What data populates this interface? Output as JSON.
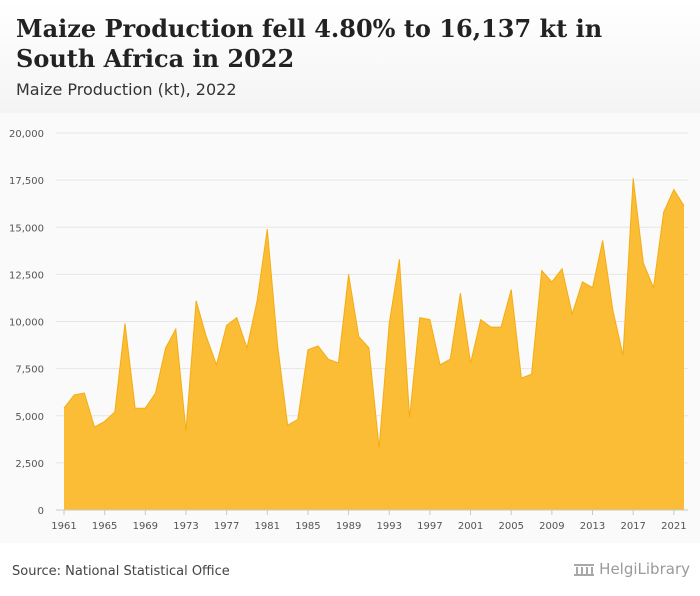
{
  "header": {
    "title": "Maize Production fell 4.80% to 16,137 kt in South Africa in 2022",
    "subtitle": "Maize Production (kt), 2022"
  },
  "footer": {
    "source": "Source: National Statistical Office",
    "brand": "HelgiLibrary"
  },
  "colors": {
    "area_fill": "#fbbd36",
    "area_line": "#f4ad12",
    "grid": "#e6e6e6",
    "axis_text": "#555555"
  },
  "chart_data": {
    "type": "area",
    "title": "Maize Production (kt), 2022",
    "xlabel": "",
    "ylabel": "",
    "ylim": [
      0,
      20000
    ],
    "yticks": [
      0,
      2500,
      5000,
      7500,
      10000,
      12500,
      15000,
      17500,
      20000
    ],
    "ytick_labels": [
      "0",
      "2,500",
      "5,000",
      "7,500",
      "10,000",
      "12,500",
      "15,000",
      "17,500",
      "20,000"
    ],
    "xtick_labels": [
      "1961",
      "1965",
      "1969",
      "1973",
      "1977",
      "1981",
      "1985",
      "1989",
      "1993",
      "1997",
      "2001",
      "2005",
      "2009",
      "2013",
      "2017",
      "2021"
    ],
    "grid": true,
    "x": [
      1961,
      1962,
      1963,
      1964,
      1965,
      1966,
      1967,
      1968,
      1969,
      1970,
      1971,
      1972,
      1973,
      1974,
      1975,
      1976,
      1977,
      1978,
      1979,
      1980,
      1981,
      1982,
      1983,
      1984,
      1985,
      1986,
      1987,
      1988,
      1989,
      1990,
      1991,
      1992,
      1993,
      1994,
      1995,
      1996,
      1997,
      1998,
      1999,
      2000,
      2001,
      2002,
      2003,
      2004,
      2005,
      2006,
      2007,
      2008,
      2009,
      2010,
      2011,
      2012,
      2013,
      2014,
      2015,
      2016,
      2017,
      2018,
      2019,
      2020,
      2021,
      2022
    ],
    "values": [
      5400,
      6100,
      6200,
      4400,
      4700,
      5200,
      9900,
      5400,
      5400,
      6200,
      8600,
      9600,
      4200,
      11100,
      9200,
      7700,
      9800,
      10200,
      8600,
      11100,
      14900,
      8800,
      4500,
      4800,
      8500,
      8700,
      8000,
      7800,
      12500,
      9200,
      8600,
      3300,
      9900,
      13300,
      4900,
      10200,
      10100,
      7700,
      8000,
      11500,
      7800,
      10100,
      9700,
      9700,
      11700,
      7000,
      7200,
      12700,
      12100,
      12800,
      10400,
      12100,
      11800,
      14300,
      10600,
      8200,
      17600,
      13100,
      11800,
      15800,
      17000,
      16137
    ]
  }
}
